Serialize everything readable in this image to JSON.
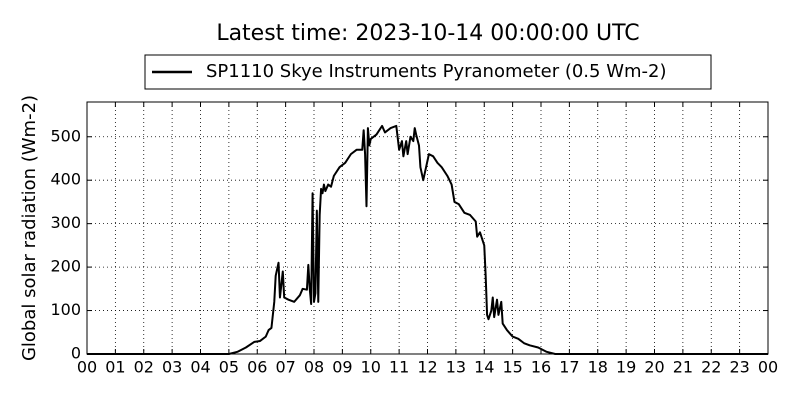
{
  "chart_data": {
    "type": "line",
    "title": "Latest time: 2023-10-14 00:00:00 UTC",
    "y_label": "Global solar radiation (Wm-2)",
    "x": [
      0,
      5.0,
      5.3,
      5.6,
      5.9,
      6.1,
      6.3,
      6.4,
      6.5,
      6.6,
      6.65,
      6.75,
      6.8,
      6.9,
      6.95,
      7.1,
      7.3,
      7.5,
      7.6,
      7.75,
      7.8,
      7.85,
      7.9,
      7.95,
      8.0,
      8.05,
      8.1,
      8.15,
      8.2,
      8.25,
      8.3,
      8.35,
      8.4,
      8.5,
      8.6,
      8.7,
      8.9,
      9.1,
      9.3,
      9.5,
      9.7,
      9.75,
      9.8,
      9.85,
      9.9,
      9.95,
      10.0,
      10.2,
      10.4,
      10.5,
      10.7,
      10.9,
      11.0,
      11.1,
      11.15,
      11.25,
      11.3,
      11.4,
      11.5,
      11.55,
      11.6,
      11.7,
      11.75,
      11.85,
      11.95,
      12.05,
      12.2,
      12.35,
      12.5,
      12.7,
      12.85,
      12.95,
      13.1,
      13.3,
      13.5,
      13.7,
      13.75,
      13.85,
      14.0,
      14.05,
      14.1,
      14.15,
      14.25,
      14.3,
      14.35,
      14.45,
      14.5,
      14.6,
      14.65,
      14.8,
      15.0,
      15.2,
      15.4,
      15.6,
      15.9,
      16.2,
      16.5,
      24
    ],
    "series": [
      {
        "name": "SP1110 Skye Instruments Pyranometer (0.5 Wm-2)",
        "color": "#000000",
        "values": [
          0,
          0,
          5,
          15,
          28,
          30,
          40,
          55,
          60,
          120,
          180,
          210,
          130,
          190,
          130,
          125,
          120,
          135,
          150,
          148,
          205,
          150,
          115,
          370,
          120,
          140,
          330,
          120,
          320,
          380,
          370,
          390,
          375,
          390,
          385,
          410,
          430,
          440,
          460,
          470,
          470,
          515,
          460,
          340,
          520,
          480,
          495,
          505,
          525,
          510,
          520,
          525,
          470,
          490,
          455,
          490,
          460,
          500,
          490,
          520,
          505,
          480,
          430,
          400,
          430,
          460,
          455,
          440,
          430,
          410,
          390,
          350,
          345,
          325,
          320,
          305,
          270,
          280,
          250,
          180,
          90,
          80,
          100,
          130,
          85,
          125,
          90,
          120,
          70,
          55,
          40,
          35,
          25,
          20,
          15,
          5,
          0,
          0
        ]
      }
    ],
    "xlim": [
      0,
      24
    ],
    "xticks": [
      {
        "value": 0,
        "label": "00"
      },
      {
        "value": 1,
        "label": "01"
      },
      {
        "value": 2,
        "label": "02"
      },
      {
        "value": 3,
        "label": "03"
      },
      {
        "value": 4,
        "label": "04"
      },
      {
        "value": 5,
        "label": "05"
      },
      {
        "value": 6,
        "label": "06"
      },
      {
        "value": 7,
        "label": "07"
      },
      {
        "value": 8,
        "label": "08"
      },
      {
        "value": 9,
        "label": "09"
      },
      {
        "value": 10,
        "label": "10"
      },
      {
        "value": 11,
        "label": "11"
      },
      {
        "value": 12,
        "label": "12"
      },
      {
        "value": 13,
        "label": "13"
      },
      {
        "value": 14,
        "label": "14"
      },
      {
        "value": 15,
        "label": "15"
      },
      {
        "value": 16,
        "label": "16"
      },
      {
        "value": 17,
        "label": "17"
      },
      {
        "value": 18,
        "label": "18"
      },
      {
        "value": 19,
        "label": "19"
      },
      {
        "value": 20,
        "label": "20"
      },
      {
        "value": 21,
        "label": "21"
      },
      {
        "value": 22,
        "label": "22"
      },
      {
        "value": 23,
        "label": "23"
      },
      {
        "value": 24,
        "label": "00"
      }
    ],
    "ylim": [
      0,
      580
    ],
    "yticks": [
      0,
      100,
      200,
      300,
      400,
      500
    ],
    "grid": true
  }
}
